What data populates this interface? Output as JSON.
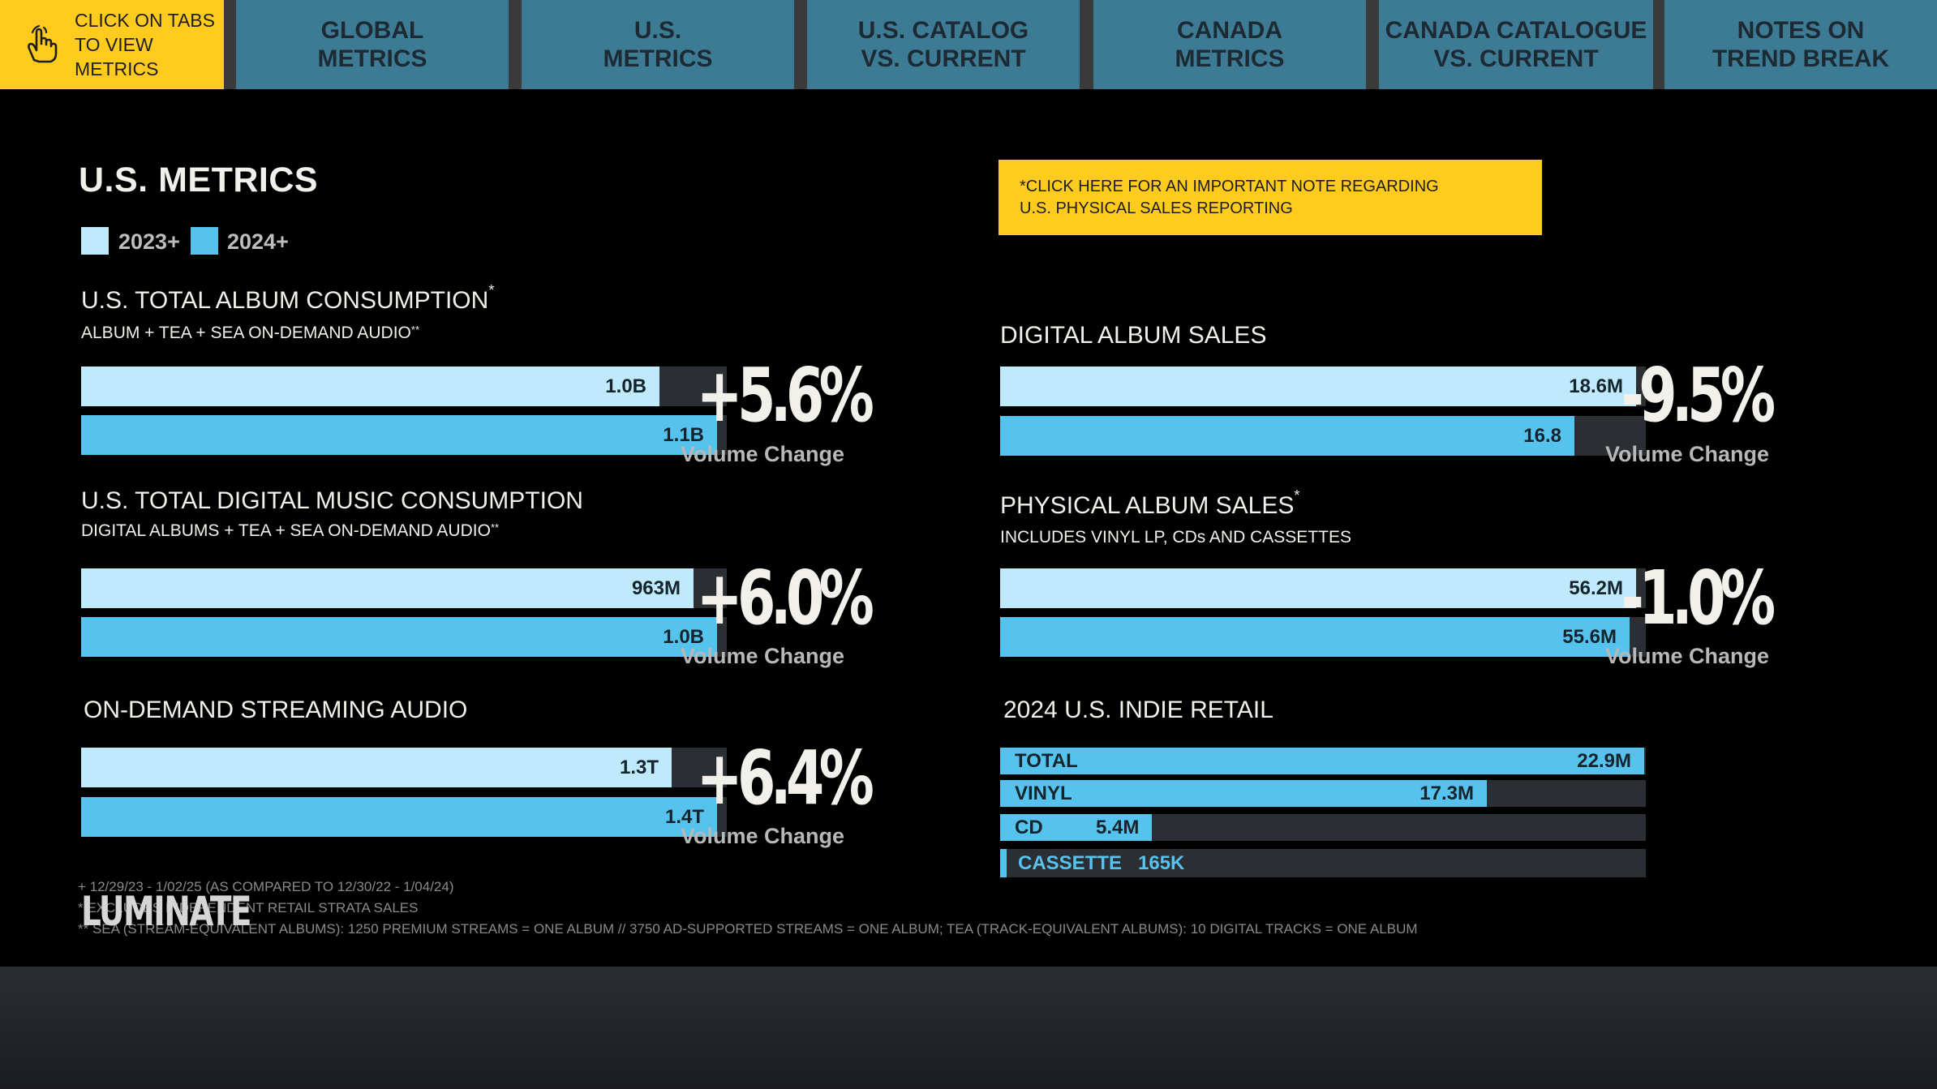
{
  "tabs": {
    "hint": "CLICK ON TABS TO VIEW METRICS",
    "items": [
      {
        "label": "GLOBAL METRICS"
      },
      {
        "label": "U.S. METRICS"
      },
      {
        "label": "U.S. CATALOG VS. CURRENT"
      },
      {
        "label": "CANADA METRICS"
      },
      {
        "label": "CANADA CATALOGUE VS. CURRENT"
      },
      {
        "label": "NOTES ON TREND BREAK"
      }
    ]
  },
  "page": {
    "title": "U.S. METRICS",
    "legend": [
      {
        "label": "2023+",
        "color": "#bfeafb"
      },
      {
        "label": "2024+",
        "color": "#55c3ee"
      }
    ],
    "note_button": "*CLICK HERE FOR AN IMPORTANT NOTE REGARDING U.S. PHYSICAL SALES REPORTING",
    "volume_change_label": "Volume Change"
  },
  "chart_data": [
    {
      "type": "bar",
      "title": "U.S. TOTAL ALBUM CONSUMPTION",
      "title_mark": "*",
      "subtitle": "ALBUM + TEA + SEA ON-DEMAND AUDIO",
      "subtitle_mark": "**",
      "categories": [
        "2023",
        "2024"
      ],
      "values": [
        1.0,
        1.1
      ],
      "value_labels": [
        "1.0B",
        "1.1B"
      ],
      "unit": "B",
      "change": "+5.6%"
    },
    {
      "type": "bar",
      "title": "U.S. TOTAL DIGITAL MUSIC CONSUMPTION",
      "title_mark": "",
      "subtitle": "DIGITAL ALBUMS + TEA + SEA ON-DEMAND AUDIO",
      "subtitle_mark": "**",
      "categories": [
        "2023",
        "2024"
      ],
      "values": [
        0.963,
        1.0
      ],
      "value_labels": [
        "963M",
        "1.0B"
      ],
      "unit": "B",
      "change": "+6.0%"
    },
    {
      "type": "bar",
      "title": "ON-DEMAND STREAMING AUDIO",
      "title_mark": "",
      "subtitle": "",
      "subtitle_mark": "",
      "categories": [
        "2023",
        "2024"
      ],
      "values": [
        1.3,
        1.4
      ],
      "value_labels": [
        "1.3T",
        "1.4T"
      ],
      "unit": "T",
      "change": "+6.4%"
    },
    {
      "type": "bar",
      "title": "DIGITAL ALBUM SALES",
      "title_mark": "",
      "subtitle": "",
      "subtitle_mark": "",
      "categories": [
        "2023",
        "2024"
      ],
      "values": [
        18.6,
        16.8
      ],
      "value_labels": [
        "18.6M",
        "16.8"
      ],
      "unit": "M",
      "change": "-9.5%"
    },
    {
      "type": "bar",
      "title": "PHYSICAL ALBUM SALES",
      "title_mark": "*",
      "subtitle": "INCLUDES VINYL LP, CDs AND CASSETTES",
      "subtitle_mark": "",
      "categories": [
        "2023",
        "2024"
      ],
      "values": [
        56.2,
        55.6
      ],
      "value_labels": [
        "56.2M",
        "55.6M"
      ],
      "unit": "M",
      "change": "-1.0%"
    },
    {
      "type": "bar",
      "title": "2024 U.S. INDIE RETAIL",
      "categories": [
        "TOTAL",
        "VINYL",
        "CD",
        "CASSETTE"
      ],
      "values": [
        22.9,
        17.3,
        5.4,
        0.165
      ],
      "value_labels": [
        "22.9M",
        "17.3M",
        "5.4M",
        "165K"
      ],
      "unit": "M"
    }
  ],
  "footnotes": [
    "+ 12/29/23 - 1/02/25 (AS COMPARED TO 12/30/22 - 1/04/24)",
    "* EXCLUDES INDEPENDENT RETAIL STRATA SALES",
    "** SEA (STREAM-EQUIVALENT ALBUMS): 1250 PREMIUM STREAMS = ONE ALBUM // 3750 AD-SUPPORTED STREAMS = ONE ALBUM; TEA (TRACK-EQUIVALENT ALBUMS): 10 DIGITAL TRACKS = ONE ALBUM"
  ],
  "brand": {
    "logo_text": "LUMINATE"
  }
}
